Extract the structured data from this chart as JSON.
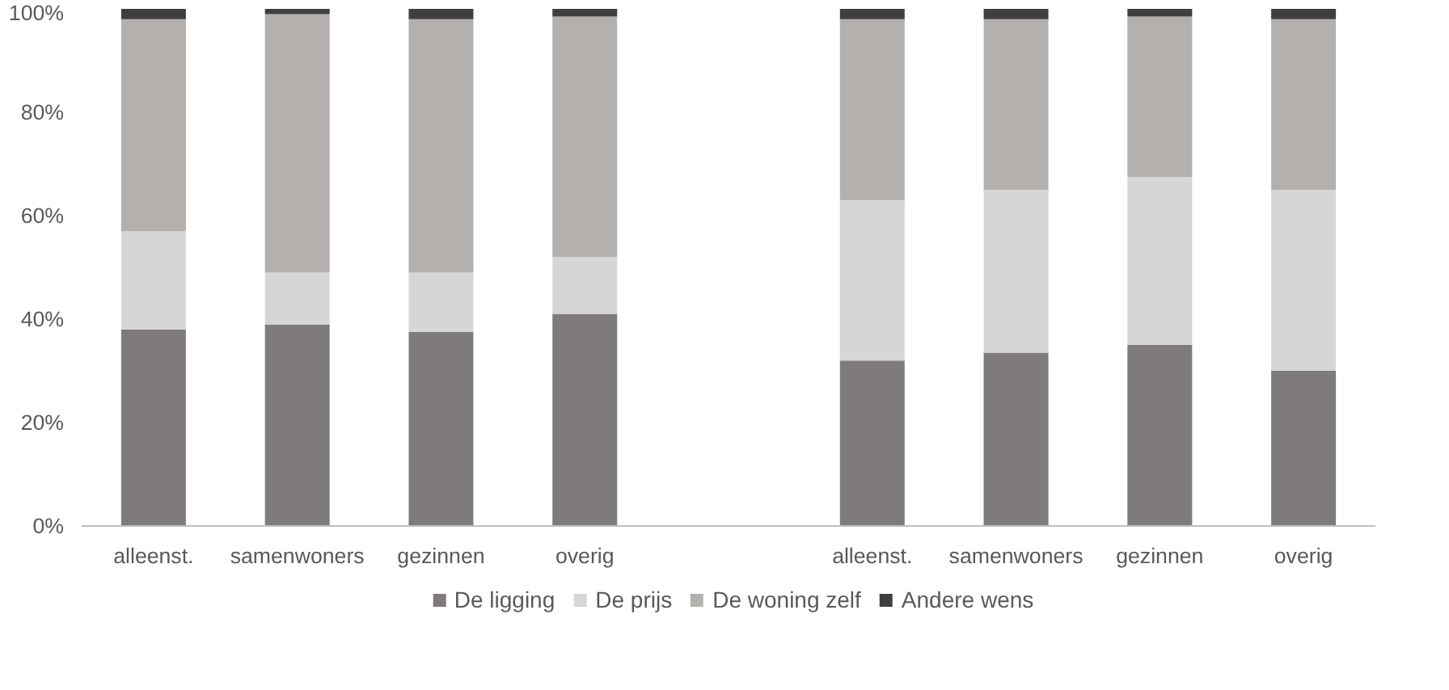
{
  "chart_data": {
    "type": "bar",
    "stacked": true,
    "categories": [
      "alleenst.",
      "samenwoners",
      "gezinnen",
      "overig",
      null,
      "alleenst.",
      "samenwoners",
      "gezinnen",
      "overig"
    ],
    "series": [
      {
        "name": "De ligging",
        "color": "#7f7b7a",
        "values": [
          38,
          39,
          37.5,
          41,
          null,
          32,
          33.5,
          35,
          30
        ]
      },
      {
        "name": "De prijs",
        "color": "#d6d6d6",
        "values": [
          19,
          10,
          11.5,
          11,
          null,
          31,
          31.5,
          32.5,
          35
        ]
      },
      {
        "name": "De woning zelf",
        "color": "#b4b0ae",
        "values": [
          41,
          50,
          49,
          46.5,
          null,
          35,
          33,
          31,
          33
        ]
      },
      {
        "name": "Andere wens",
        "color": "#3f3f3f",
        "values": [
          2,
          1,
          2,
          1.5,
          null,
          2,
          2,
          1.5,
          2
        ]
      }
    ],
    "ylim": [
      0,
      100
    ],
    "yticks": [
      {
        "value": 0,
        "label": "0%"
      },
      {
        "value": 20,
        "label": "20%"
      },
      {
        "value": 40,
        "label": "40%"
      },
      {
        "value": 60,
        "label": "60%"
      },
      {
        "value": 80,
        "label": "80%"
      },
      {
        "value": 100,
        "label": "100%"
      }
    ],
    "grid": false,
    "legend": "bottom"
  }
}
